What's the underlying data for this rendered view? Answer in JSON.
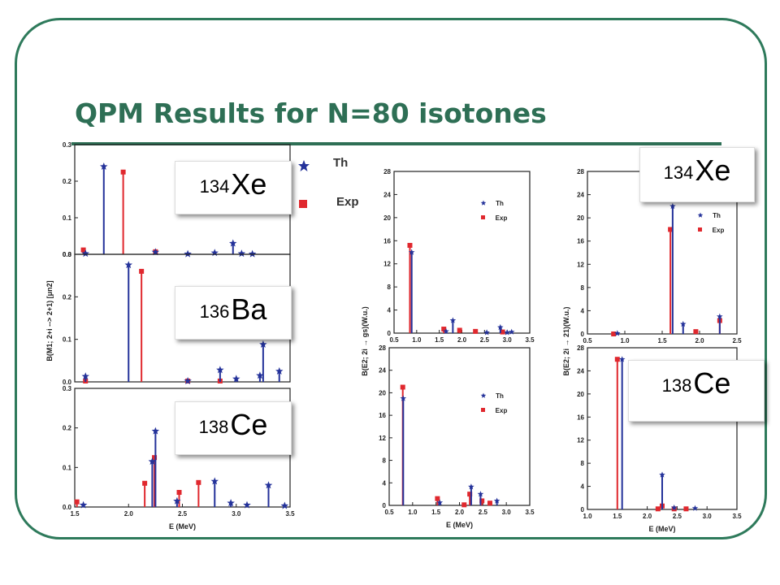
{
  "slide_title": "QPM Results for N=80 isotones",
  "colors": {
    "th": "#24329a",
    "exp": "#e0282e",
    "accent": "#2e6f55"
  },
  "legend": {
    "th": "Th",
    "exp": "Exp"
  },
  "isotope_labels": [
    {
      "mass": "134",
      "symbol": "Xe"
    },
    {
      "mass": "136",
      "symbol": "Ba"
    },
    {
      "mass": "138",
      "symbol": "Ce"
    },
    {
      "mass": "134",
      "symbol": "Xe"
    },
    {
      "mass": "138",
      "symbol": "Ce"
    }
  ],
  "chart_data": [
    {
      "id": "m1_134xe",
      "type": "bar",
      "ylabel": "B(M1; 2+i --> 2+1) [μn2]",
      "xlim": [
        1.5,
        3.5
      ],
      "ylim": [
        0,
        0.3
      ],
      "yticks": [
        "0.0",
        "0.1",
        "0.2",
        "0.3"
      ],
      "series": [
        {
          "name": "Th",
          "points": [
            [
              1.6,
              0.002
            ],
            [
              1.77,
              0.24
            ],
            [
              2.25,
              0.006
            ],
            [
              2.55,
              0.001
            ],
            [
              2.8,
              0.004
            ],
            [
              2.97,
              0.03
            ],
            [
              3.05,
              0.002
            ],
            [
              3.15,
              0.001
            ]
          ]
        },
        {
          "name": "Exp",
          "points": [
            [
              1.58,
              0.012
            ],
            [
              1.95,
              0.225
            ],
            [
              2.25,
              0.007
            ]
          ]
        }
      ]
    },
    {
      "id": "m1_136ba",
      "type": "bar",
      "xlim": [
        1.5,
        3.5
      ],
      "ylim": [
        0,
        0.3
      ],
      "yticks": [
        "0.0",
        "0.1",
        "0.2",
        "0.3"
      ],
      "series": [
        {
          "name": "Th",
          "points": [
            [
              1.6,
              0.013
            ],
            [
              2.0,
              0.275
            ],
            [
              2.55,
              0.002
            ],
            [
              2.85,
              0.028
            ],
            [
              3.0,
              0.007
            ],
            [
              3.22,
              0.015
            ],
            [
              3.25,
              0.088
            ],
            [
              3.4,
              0.025
            ]
          ]
        },
        {
          "name": "Exp",
          "points": [
            [
              1.6,
              0.002
            ],
            [
              2.12,
              0.26
            ],
            [
              2.55,
              0.002
            ],
            [
              2.85,
              0.002
            ]
          ]
        }
      ]
    },
    {
      "id": "m1_138ce",
      "type": "bar",
      "xlabel": "E (MeV)",
      "xlim": [
        1.5,
        3.5
      ],
      "ylim": [
        0,
        0.3
      ],
      "xticks": [
        "1.5",
        "2.0",
        "2.5",
        "3.0",
        "3.5"
      ],
      "yticks": [
        "0.0",
        "0.1",
        "0.2",
        "0.3"
      ],
      "series": [
        {
          "name": "Th",
          "points": [
            [
              1.58,
              0.005
            ],
            [
              2.22,
              0.115
            ],
            [
              2.25,
              0.192
            ],
            [
              2.45,
              0.015
            ],
            [
              2.8,
              0.065
            ],
            [
              2.95,
              0.01
            ],
            [
              3.1,
              0.005
            ],
            [
              3.3,
              0.055
            ],
            [
              3.45,
              0.003
            ]
          ]
        },
        {
          "name": "Exp",
          "points": [
            [
              1.52,
              0.013
            ],
            [
              2.15,
              0.06
            ],
            [
              2.24,
              0.125
            ],
            [
              2.47,
              0.037
            ],
            [
              2.65,
              0.062
            ]
          ]
        }
      ]
    },
    {
      "id": "e2_134xe_gs",
      "type": "bar",
      "xlim": [
        0.5,
        3.5
      ],
      "ylim": [
        0,
        28
      ],
      "xticks": [
        "0.5",
        "1.0",
        "1.5",
        "2.0",
        "2.5",
        "3.0",
        "3.5"
      ],
      "yticks": [
        "0",
        "4",
        "8",
        "12",
        "16",
        "20",
        "24",
        "28"
      ],
      "legend_labels": [
        "Th",
        "Exp"
      ],
      "series": [
        {
          "name": "Th",
          "points": [
            [
              0.89,
              14.0
            ],
            [
              1.65,
              0.3
            ],
            [
              1.8,
              2.2
            ],
            [
              2.55,
              0.1
            ],
            [
              2.85,
              1.0
            ],
            [
              3.0,
              0.1
            ],
            [
              3.1,
              0.2
            ]
          ]
        },
        {
          "name": "Exp",
          "points": [
            [
              0.85,
              15.2
            ],
            [
              1.6,
              0.7
            ],
            [
              1.95,
              0.5
            ],
            [
              2.3,
              0.3
            ],
            [
              2.9,
              0.2
            ]
          ]
        }
      ]
    },
    {
      "id": "e2_138ce_gs",
      "type": "bar",
      "ylabel": "B(E2; 2i → gs)(W.u.)",
      "xlabel": "E (MeV)",
      "xlim": [
        0.5,
        3.5
      ],
      "ylim": [
        0,
        28
      ],
      "xticks": [
        "0.5",
        "1.0",
        "1.5",
        "2.0",
        "2.5",
        "3.0",
        "3.5"
      ],
      "yticks": [
        "0",
        "4",
        "8",
        "12",
        "16",
        "20",
        "24",
        "28"
      ],
      "legend_labels": [
        "Th",
        "Exp"
      ],
      "series": [
        {
          "name": "Th",
          "points": [
            [
              0.8,
              19.0
            ],
            [
              1.58,
              0.5
            ],
            [
              2.25,
              3.3
            ],
            [
              2.45,
              2.0
            ],
            [
              2.8,
              0.8
            ]
          ]
        },
        {
          "name": "Exp",
          "points": [
            [
              0.79,
              21.0
            ],
            [
              1.53,
              1.2
            ],
            [
              2.1,
              0.1
            ],
            [
              2.22,
              2.0
            ],
            [
              2.48,
              0.8
            ],
            [
              2.65,
              0.4
            ]
          ]
        }
      ]
    },
    {
      "id": "e2_134xe_21",
      "type": "bar",
      "xlim": [
        0.5,
        2.5
      ],
      "ylim": [
        0,
        28
      ],
      "xticks": [
        "0.5",
        "1.0",
        "1.5",
        "2.0",
        "2.5"
      ],
      "yticks": [
        "0",
        "4",
        "8",
        "12",
        "16",
        "20",
        "24",
        "28"
      ],
      "legend_labels": [
        "Th",
        "Exp"
      ],
      "series": [
        {
          "name": "Th",
          "points": [
            [
              0.9,
              0.1
            ],
            [
              1.64,
              22.0
            ],
            [
              1.78,
              1.7
            ],
            [
              2.27,
              3.0
            ]
          ]
        },
        {
          "name": "Exp",
          "points": [
            [
              0.85,
              0.0
            ],
            [
              1.61,
              18.0
            ],
            [
              1.95,
              0.4
            ],
            [
              2.27,
              2.3
            ]
          ]
        }
      ]
    },
    {
      "id": "e2_138ce_21",
      "type": "bar",
      "ylabel": "B(E2; 2i → 21)(W.u.)",
      "xlabel": "E (MeV)",
      "xlim": [
        1.0,
        3.5
      ],
      "ylim": [
        0,
        28
      ],
      "xticks": [
        "1.0",
        "1.5",
        "2.0",
        "2.5",
        "3.0",
        "3.5"
      ],
      "yticks": [
        "0",
        "4",
        "8",
        "12",
        "16",
        "20",
        "24",
        "28"
      ],
      "series": [
        {
          "name": "Th",
          "points": [
            [
              1.58,
              26.0
            ],
            [
              2.25,
              6.0
            ],
            [
              2.45,
              0.3
            ],
            [
              2.8,
              0.2
            ]
          ]
        },
        {
          "name": "Exp",
          "points": [
            [
              1.5,
              26.0
            ],
            [
              2.18,
              0.1
            ],
            [
              2.25,
              0.6
            ],
            [
              2.45,
              0.1
            ],
            [
              2.65,
              0.1
            ]
          ]
        }
      ]
    }
  ]
}
